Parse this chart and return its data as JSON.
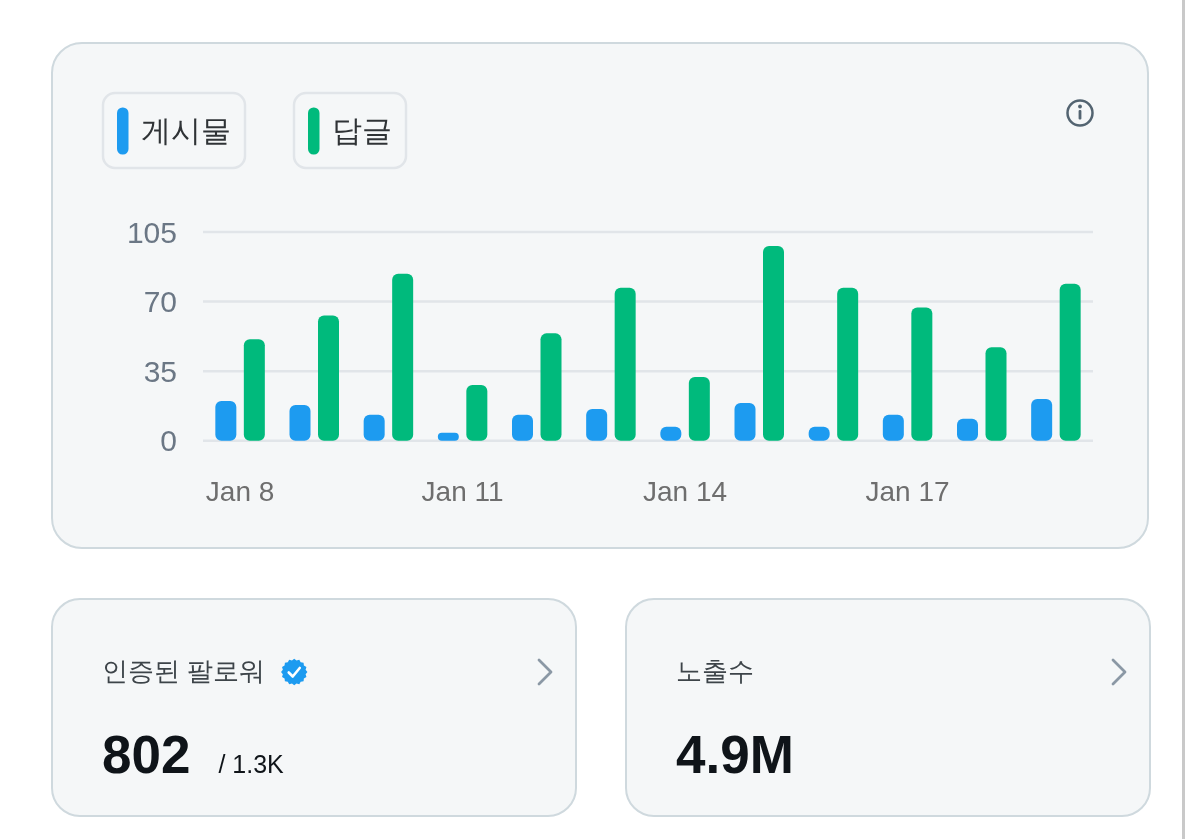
{
  "chart_data": [
    {
      "type": "bar",
      "categories": [
        "Jan 8",
        null,
        null,
        "Jan 11",
        null,
        null,
        "Jan 14",
        null,
        null,
        "Jan 17",
        null,
        null
      ],
      "series": [
        {
          "name": "게시물",
          "color": "#1d9bf0",
          "values": [
            20,
            18,
            13,
            4,
            13,
            16,
            7,
            19,
            7,
            13,
            11,
            21
          ]
        },
        {
          "name": "답글",
          "color": "#00ba7c",
          "values": [
            51,
            63,
            84,
            28,
            54,
            77,
            32,
            98,
            77,
            67,
            47,
            79
          ]
        }
      ],
      "ylim": [
        0,
        105
      ],
      "yticks": [
        0,
        35,
        70,
        105
      ],
      "grid": "y",
      "legend": "top left"
    },
    {
      "type": "other",
      "title": "인증된 팔로워",
      "annotations": [
        "802",
        "/ 1.3K"
      ]
    },
    {
      "type": "other",
      "title": "노출수",
      "annotations": [
        "4.9M"
      ]
    }
  ]
}
